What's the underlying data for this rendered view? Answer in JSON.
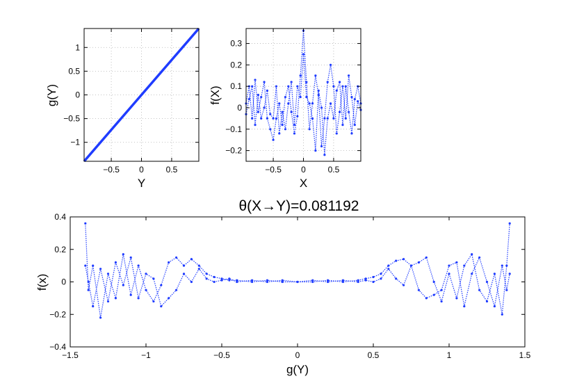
{
  "figure_title": "θ(X→Y)=0.081192",
  "marker_color": "#1f3cff",
  "chart_data": [
    {
      "type": "line",
      "xlabel": "Y",
      "ylabel": "g(Y)",
      "xlim": [
        -0.95,
        0.95
      ],
      "ylim": [
        -1.4,
        1.4
      ],
      "xticks": [
        -0.5,
        0,
        0.5
      ],
      "xtick_labels": [
        "−0.5",
        "0",
        "0.5"
      ],
      "yticks": [
        -1,
        -0.5,
        0,
        0.5,
        1
      ],
      "ytick_labels": [
        "−1",
        "−0.5",
        "0",
        "0.5",
        "1"
      ],
      "grid": true,
      "x": [
        -0.95,
        -0.5,
        0,
        0.5,
        0.95
      ],
      "y": [
        -1.4,
        -0.737,
        0,
        0.737,
        1.4
      ]
    },
    {
      "type": "scatter",
      "xlabel": "X",
      "ylabel": "f(X)",
      "xlim": [
        -0.95,
        0.95
      ],
      "ylim": [
        -0.25,
        0.37
      ],
      "xticks": [
        -0.5,
        0,
        0.5
      ],
      "xtick_labels": [
        "−0.5",
        "0",
        "0.5"
      ],
      "yticks": [
        -0.2,
        -0.1,
        0,
        0.1,
        0.2,
        0.3
      ],
      "ytick_labels": [
        "−0.2",
        "−0.1",
        "0",
        "0.1",
        "0.2",
        "0.3"
      ],
      "grid": true,
      "x": [
        -0.95,
        -0.9,
        -0.85,
        -0.8,
        -0.75,
        -0.7,
        -0.65,
        -0.6,
        -0.55,
        -0.5,
        -0.45,
        -0.4,
        -0.35,
        -0.3,
        -0.25,
        -0.2,
        -0.15,
        -0.1,
        -0.05,
        0,
        0.05,
        0.1,
        0.15,
        0.2,
        0.25,
        0.3,
        0.35,
        0.4,
        0.45,
        0.5,
        0.55,
        0.6,
        0.65,
        0.7,
        0.75,
        0.8,
        0.85,
        0.9,
        0.95
      ],
      "y": [
        0.02,
        0.1,
        -0.05,
        0.13,
        -0.02,
        0.05,
        0.12,
        -0.05,
        -0.1,
        -0.15,
        -0.05,
        0.02,
        -0.08,
        0.05,
        0.1,
        -0.02,
        -0.12,
        -0.04,
        0.15,
        0.36,
        0.12,
        -0.1,
        0.02,
        0.15,
        0.06,
        -0.18,
        -0.05,
        0.12,
        0.2,
        0.1,
        -0.12,
        -0.02,
        0.1,
        -0.05,
        0.15,
        0.05,
        -0.08,
        0.03,
        -0.01
      ],
      "y_alt": [
        -0.03,
        0.04,
        0.1,
        -0.08,
        0.06,
        -0.05,
        0.0,
        0.08,
        -0.03,
        -0.05,
        0.1,
        -0.12,
        -0.02,
        -0.1,
        0.02,
        0.12,
        -0.08,
        0.1,
        0.05,
        0.25,
        0.05,
        0.02,
        -0.05,
        -0.2,
        0.08,
        0.0,
        -0.22,
        -0.05,
        0.02,
        -0.05,
        0.08,
        0.12,
        -0.08,
        0.1,
        -0.02,
        -0.12,
        0.04,
        0.1,
        0.02
      ]
    },
    {
      "type": "scatter",
      "xlabel": "g(Y)",
      "ylabel": "f(x)",
      "xlim": [
        -1.5,
        1.5
      ],
      "ylim": [
        -0.4,
        0.4
      ],
      "xticks": [
        -1.5,
        -1,
        -0.5,
        0,
        0.5,
        1,
        1.5
      ],
      "xtick_labels": [
        "−1.5",
        "−1",
        "−0.5",
        "0",
        "0.5",
        "1",
        "1.5"
      ],
      "yticks": [
        -0.4,
        -0.2,
        0,
        0.2,
        0.4
      ],
      "ytick_labels": [
        "−0.4",
        "−0.2",
        "0",
        "0.2",
        "0.4"
      ],
      "grid": false,
      "x": [
        -1.4,
        -1.38,
        -1.35,
        -1.3,
        -1.25,
        -1.2,
        -1.15,
        -1.1,
        -1.05,
        -1.0,
        -0.95,
        -0.9,
        -0.85,
        -0.8,
        -0.75,
        -0.7,
        -0.65,
        -0.6,
        -0.55,
        -0.5,
        -0.45,
        -0.4,
        -0.3,
        -0.2,
        -0.1,
        0,
        0.1,
        0.2,
        0.3,
        0.4,
        0.45,
        0.5,
        0.55,
        0.6,
        0.65,
        0.7,
        0.75,
        0.8,
        0.85,
        0.9,
        0.95,
        1.0,
        1.05,
        1.1,
        1.15,
        1.2,
        1.25,
        1.3,
        1.35,
        1.38,
        1.4
      ],
      "y": [
        0.36,
        -0.05,
        0.1,
        -0.22,
        0.05,
        -0.1,
        0.17,
        -0.08,
        0.1,
        -0.05,
        -0.12,
        -0.02,
        0.12,
        0.15,
        0.1,
        0.14,
        0.1,
        0.05,
        0.03,
        0.02,
        0.01,
        0.01,
        0.0,
        0.01,
        0.0,
        0.0,
        0.0,
        0.01,
        0.0,
        0.01,
        0.02,
        0.03,
        0.05,
        0.1,
        0.13,
        0.14,
        0.1,
        0.12,
        0.15,
        0.0,
        -0.12,
        0.05,
        -0.1,
        0.1,
        0.17,
        -0.05,
        -0.12,
        0.05,
        -0.2,
        0.1,
        0.36
      ],
      "y_alt": [
        0.1,
        0.0,
        -0.15,
        0.08,
        -0.12,
        0.12,
        -0.02,
        0.15,
        -0.1,
        0.05,
        0.02,
        -0.15,
        -0.1,
        -0.05,
        0.05,
        0.0,
        0.08,
        0.02,
        0.0,
        0.01,
        0.02,
        0.0,
        0.01,
        0.0,
        0.01,
        0.0,
        0.01,
        0.0,
        0.01,
        0.0,
        0.01,
        0.0,
        0.02,
        0.08,
        0.02,
        -0.02,
        0.1,
        -0.05,
        -0.1,
        -0.08,
        -0.05,
        0.1,
        0.12,
        -0.15,
        0.05,
        0.15,
        0.0,
        -0.15,
        0.1,
        -0.05,
        0.05
      ]
    }
  ]
}
